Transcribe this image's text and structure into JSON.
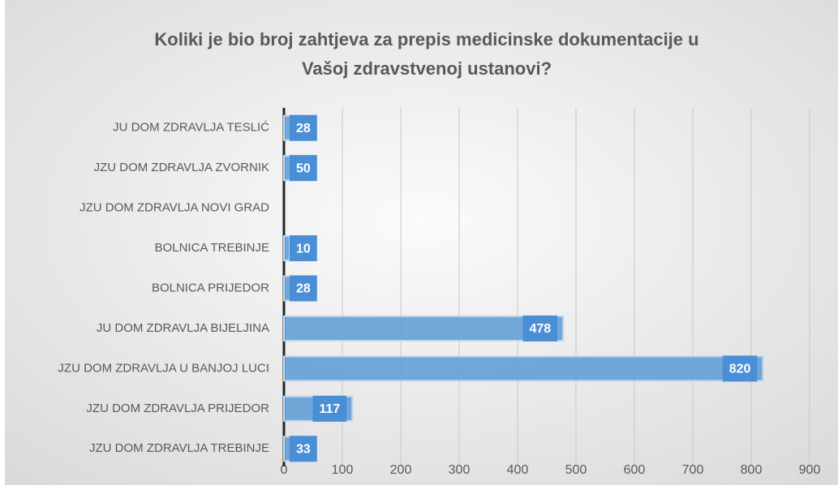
{
  "chart_data": {
    "type": "bar",
    "orientation": "horizontal",
    "title": [
      "Koliki je bio broj zahtjeva za prepis medicinske dokumentacije u",
      "Vašoj zdravstvenoj ustanovi?"
    ],
    "categories": [
      "JU DOM ZDRAVLJA TESLIĆ",
      "JZU DOM ZDRAVLJA ZVORNIK",
      "JZU DOM ZDRAVLJA NOVI GRAD",
      "BOLNICA TREBINJE",
      "BOLNICA PRIJEDOR",
      "JU DOM ZDRAVLJA BIJELJINA",
      "JZU DOM ZDRAVLJA U BANJOJ LUCI",
      "JZU DOM ZDRAVLJA PRIJEDOR",
      "JZU DOM ZDRAVLJA TREBINJE"
    ],
    "values": [
      28,
      50,
      null,
      10,
      28,
      478,
      820,
      117,
      33
    ],
    "color": "#5b9bd5",
    "xlim": [
      0,
      900
    ],
    "xticks": [
      0,
      100,
      200,
      300,
      400,
      500,
      600,
      700,
      800,
      900
    ],
    "grid": true
  }
}
